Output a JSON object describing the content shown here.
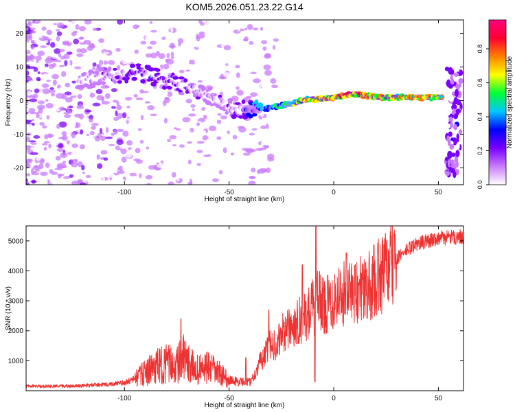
{
  "title": "KOM5.2026.051.23.22.G14",
  "chart_data": [
    {
      "type": "heatmap",
      "name": "spectrogram",
      "xlabel": "Height of straight line (km)",
      "ylabel": "Frequency (Hz)",
      "xlim": [
        -147,
        62
      ],
      "ylim": [
        -25,
        24
      ],
      "xticks": [
        -100,
        -50,
        0,
        50
      ],
      "yticks": [
        -20,
        -10,
        0,
        10,
        20
      ],
      "colorbar": {
        "label": "Normalized spectral amplitude",
        "range": [
          0,
          0.97
        ],
        "ticks": [
          0.0,
          0.2,
          0.4,
          0.6,
          0.8
        ],
        "colors": [
          "#ffffff",
          "#c97bff",
          "#7a00ff",
          "#0000ff",
          "#00c8ff",
          "#00ff33",
          "#ffff00",
          "#ff8000",
          "#ff0030",
          "#ff007f"
        ]
      },
      "ridge": {
        "x": [
          -120,
          -110,
          -100,
          -95,
          -90,
          -85,
          -80,
          -75,
          -70,
          -65,
          -60,
          -55,
          -50,
          -45,
          -40,
          -35,
          -30,
          -25,
          -20,
          -15,
          -10,
          -5,
          0,
          5,
          10,
          15,
          20,
          25,
          30,
          40,
          50,
          52
        ],
        "freq": [
          6,
          7,
          8,
          8.5,
          8,
          7,
          6,
          5,
          4,
          3,
          1.5,
          0,
          -2,
          -3,
          -2.5,
          -2.5,
          -2,
          -1.5,
          -1,
          0,
          0.5,
          0.5,
          1,
          1.5,
          2,
          1.5,
          1,
          1,
          1,
          1,
          1,
          1
        ],
        "amplitude": [
          0.15,
          0.2,
          0.25,
          0.3,
          0.3,
          0.3,
          0.25,
          0.25,
          0.25,
          0.2,
          0.2,
          0.2,
          0.2,
          0.25,
          0.4,
          0.45,
          0.5,
          0.55,
          0.6,
          0.7,
          0.75,
          0.75,
          0.8,
          0.85,
          0.85,
          0.8,
          0.8,
          0.75,
          0.75,
          0.75,
          0.75,
          0.7
        ]
      }
    },
    {
      "type": "line",
      "name": "snr",
      "xlabel": "Height of straight line (km)",
      "ylabel": "SNR (10 * v/v)",
      "xlim": [
        -147,
        62
      ],
      "ylim": [
        0,
        5500
      ],
      "xticks": [
        -100,
        -50,
        0,
        50
      ],
      "yticks": [
        1000,
        2000,
        3000,
        4000,
        5000
      ],
      "series": [
        {
          "name": "SNR",
          "color": "#ee3333",
          "x": [
            -147,
            -130,
            -110,
            -100,
            -95,
            -90,
            -85,
            -80,
            -75,
            -72,
            -70,
            -65,
            -60,
            -55,
            -50,
            -45,
            -40,
            -38,
            -35,
            -32,
            -30,
            -27,
            -25,
            -22,
            -20,
            -17,
            -15,
            -12,
            -10,
            -9,
            -8,
            -5,
            0,
            5,
            10,
            15,
            20,
            25,
            30,
            35,
            40,
            45,
            50,
            55,
            62
          ],
          "y": [
            150,
            150,
            200,
            260,
            400,
            600,
            800,
            900,
            850,
            1100,
            900,
            700,
            750,
            600,
            350,
            300,
            300,
            500,
            1000,
            1300,
            1600,
            1500,
            1900,
            2000,
            2100,
            2400,
            2300,
            2600,
            2900,
            2000,
            3100,
            2800,
            3100,
            3300,
            3400,
            3300,
            3700,
            4000,
            4400,
            4700,
            4900,
            5000,
            5100,
            5100,
            5150
          ],
          "spikes": [
            {
              "x": -73,
              "y": 2400
            },
            {
              "x": -42,
              "y": 1100
            },
            {
              "x": -31,
              "y": 2700
            },
            {
              "x": -15,
              "y": 4200
            },
            {
              "x": -8.5,
              "y": 5500
            },
            {
              "x": -9,
              "y": 300
            },
            {
              "x": 6,
              "y": 4600
            },
            {
              "x": 12,
              "y": 3600
            }
          ]
        }
      ]
    }
  ]
}
